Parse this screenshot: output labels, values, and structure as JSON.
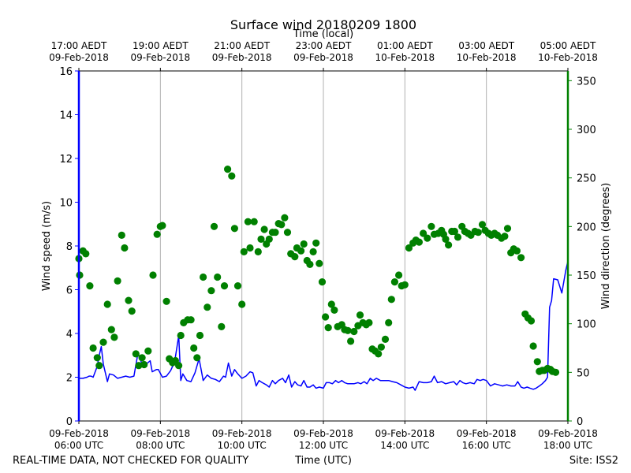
{
  "chart_data": {
    "type": "line+scatter",
    "title": "Surface wind 20180209 1800",
    "top_axis_label": "Time (local)",
    "xlabel": "Time (UTC)",
    "ylabel_left": "Wind speed (m/s)",
    "ylabel_right": "Wind direction (degrees)",
    "footer_left": "REAL-TIME DATA, NOT CHECKED FOR QUALITY",
    "footer_right": "Site: ISS2",
    "x_range_hours": [
      6,
      18
    ],
    "ylim_left": [
      0,
      16
    ],
    "ylim_right": [
      0,
      360
    ],
    "colors": {
      "speed": "#0000ff",
      "direction": "#008000",
      "grid": "#b0b0b0"
    },
    "bottom_ticks": [
      {
        "hour": 6,
        "line1": "09-Feb-2018",
        "line2": "06:00 UTC"
      },
      {
        "hour": 8,
        "line1": "09-Feb-2018",
        "line2": "08:00 UTC"
      },
      {
        "hour": 10,
        "line1": "09-Feb-2018",
        "line2": "10:00 UTC"
      },
      {
        "hour": 12,
        "line1": "09-Feb-2018",
        "line2": "12:00 UTC"
      },
      {
        "hour": 14,
        "line1": "09-Feb-2018",
        "line2": "14:00 UTC"
      },
      {
        "hour": 16,
        "line1": "09-Feb-2018",
        "line2": "16:00 UTC"
      },
      {
        "hour": 18,
        "line1": "09-Feb-2018",
        "line2": "18:00 UTC"
      }
    ],
    "top_ticks": [
      {
        "hour": 6,
        "line1": "17:00 AEDT",
        "line2": "09-Feb-2018"
      },
      {
        "hour": 8,
        "line1": "19:00 AEDT",
        "line2": "09-Feb-2018"
      },
      {
        "hour": 10,
        "line1": "21:00 AEDT",
        "line2": "09-Feb-2018"
      },
      {
        "hour": 12,
        "line1": "23:00 AEDT",
        "line2": "09-Feb-2018"
      },
      {
        "hour": 14,
        "line1": "01:00 AEDT",
        "line2": "10-Feb-2018"
      },
      {
        "hour": 16,
        "line1": "03:00 AEDT",
        "line2": "10-Feb-2018"
      },
      {
        "hour": 18,
        "line1": "05:00 AEDT",
        "line2": "10-Feb-2018"
      }
    ],
    "left_ticks": [
      "0",
      "2",
      "4",
      "6",
      "8",
      "10",
      "12",
      "14",
      "16"
    ],
    "right_ticks": [
      "0",
      "50",
      "100",
      "150",
      "200",
      "250",
      "300",
      "350"
    ],
    "series": [
      {
        "name": "Wind speed",
        "axis": "left",
        "style": "line",
        "points": [
          [
            6.0,
            1.95
          ],
          [
            6.1,
            1.95
          ],
          [
            6.2,
            2.0
          ],
          [
            6.25,
            2.05
          ],
          [
            6.3,
            2.05
          ],
          [
            6.35,
            2.0
          ],
          [
            6.45,
            2.5
          ],
          [
            6.5,
            3.0
          ],
          [
            6.55,
            3.4
          ],
          [
            6.6,
            2.6
          ],
          [
            6.7,
            1.8
          ],
          [
            6.75,
            2.15
          ],
          [
            6.85,
            2.1
          ],
          [
            6.95,
            1.95
          ],
          [
            7.05,
            2.0
          ],
          [
            7.15,
            2.05
          ],
          [
            7.25,
            2.0
          ],
          [
            7.35,
            2.05
          ],
          [
            7.45,
            3.1
          ],
          [
            7.55,
            2.6
          ],
          [
            7.65,
            2.6
          ],
          [
            7.75,
            2.75
          ],
          [
            7.8,
            2.25
          ],
          [
            7.9,
            2.35
          ],
          [
            7.95,
            2.35
          ],
          [
            8.05,
            2.0
          ],
          [
            8.15,
            2.05
          ],
          [
            8.25,
            2.3
          ],
          [
            8.35,
            2.7
          ],
          [
            8.45,
            3.9
          ],
          [
            8.5,
            1.85
          ],
          [
            8.55,
            2.15
          ],
          [
            8.65,
            1.85
          ],
          [
            8.75,
            1.8
          ],
          [
            8.85,
            2.2
          ],
          [
            8.95,
            2.85
          ],
          [
            9.05,
            1.85
          ],
          [
            9.15,
            2.1
          ],
          [
            9.25,
            1.95
          ],
          [
            9.35,
            1.9
          ],
          [
            9.45,
            1.8
          ],
          [
            9.55,
            2.05
          ],
          [
            9.6,
            2.0
          ],
          [
            9.67,
            2.65
          ],
          [
            9.75,
            2.05
          ],
          [
            9.82,
            2.35
          ],
          [
            9.9,
            2.15
          ],
          [
            10.0,
            1.95
          ],
          [
            10.1,
            2.05
          ],
          [
            10.2,
            2.25
          ],
          [
            10.27,
            2.2
          ],
          [
            10.35,
            1.6
          ],
          [
            10.42,
            1.85
          ],
          [
            10.5,
            1.75
          ],
          [
            10.6,
            1.65
          ],
          [
            10.67,
            1.55
          ],
          [
            10.75,
            1.85
          ],
          [
            10.82,
            1.7
          ],
          [
            10.9,
            1.85
          ],
          [
            11.0,
            1.95
          ],
          [
            11.07,
            1.75
          ],
          [
            11.15,
            2.1
          ],
          [
            11.22,
            1.55
          ],
          [
            11.3,
            1.8
          ],
          [
            11.37,
            1.65
          ],
          [
            11.45,
            1.6
          ],
          [
            11.52,
            1.85
          ],
          [
            11.6,
            1.55
          ],
          [
            11.67,
            1.55
          ],
          [
            11.75,
            1.65
          ],
          [
            11.82,
            1.5
          ],
          [
            11.9,
            1.55
          ],
          [
            12.0,
            1.5
          ],
          [
            12.07,
            1.75
          ],
          [
            12.15,
            1.75
          ],
          [
            12.22,
            1.7
          ],
          [
            12.3,
            1.85
          ],
          [
            12.37,
            1.75
          ],
          [
            12.45,
            1.85
          ],
          [
            12.52,
            1.75
          ],
          [
            12.6,
            1.7
          ],
          [
            12.75,
            1.7
          ],
          [
            12.85,
            1.75
          ],
          [
            12.92,
            1.7
          ],
          [
            13.0,
            1.8
          ],
          [
            13.07,
            1.7
          ],
          [
            13.15,
            1.95
          ],
          [
            13.22,
            1.85
          ],
          [
            13.3,
            1.95
          ],
          [
            13.4,
            1.85
          ],
          [
            13.5,
            1.85
          ],
          [
            13.6,
            1.85
          ],
          [
            13.7,
            1.8
          ],
          [
            13.8,
            1.75
          ],
          [
            13.9,
            1.65
          ],
          [
            14.0,
            1.55
          ],
          [
            14.1,
            1.5
          ],
          [
            14.2,
            1.55
          ],
          [
            14.25,
            1.4
          ],
          [
            14.35,
            1.8
          ],
          [
            14.45,
            1.75
          ],
          [
            14.55,
            1.75
          ],
          [
            14.65,
            1.8
          ],
          [
            14.72,
            2.05
          ],
          [
            14.8,
            1.75
          ],
          [
            14.9,
            1.8
          ],
          [
            15.0,
            1.7
          ],
          [
            15.1,
            1.75
          ],
          [
            15.2,
            1.8
          ],
          [
            15.27,
            1.65
          ],
          [
            15.35,
            1.85
          ],
          [
            15.42,
            1.75
          ],
          [
            15.5,
            1.7
          ],
          [
            15.6,
            1.75
          ],
          [
            15.7,
            1.7
          ],
          [
            15.77,
            1.9
          ],
          [
            15.85,
            1.85
          ],
          [
            15.92,
            1.9
          ],
          [
            16.0,
            1.85
          ],
          [
            16.1,
            1.6
          ],
          [
            16.2,
            1.7
          ],
          [
            16.3,
            1.65
          ],
          [
            16.4,
            1.6
          ],
          [
            16.5,
            1.65
          ],
          [
            16.6,
            1.6
          ],
          [
            16.7,
            1.6
          ],
          [
            16.77,
            1.8
          ],
          [
            16.85,
            1.55
          ],
          [
            16.92,
            1.5
          ],
          [
            17.0,
            1.55
          ],
          [
            17.07,
            1.5
          ],
          [
            17.15,
            1.45
          ],
          [
            17.22,
            1.5
          ],
          [
            17.3,
            1.6
          ],
          [
            17.37,
            1.7
          ],
          [
            17.45,
            1.85
          ],
          [
            17.5,
            2.0
          ],
          [
            17.55,
            5.2
          ],
          [
            17.6,
            5.5
          ],
          [
            17.65,
            6.5
          ],
          [
            17.75,
            6.45
          ],
          [
            17.85,
            5.85
          ],
          [
            17.95,
            6.9
          ],
          [
            18.0,
            7.3
          ]
        ]
      },
      {
        "name": "Wind direction",
        "axis": "right",
        "style": "markers",
        "points": [
          [
            6.0,
            167
          ],
          [
            6.02,
            150
          ],
          [
            6.1,
            175
          ],
          [
            6.17,
            172
          ],
          [
            6.27,
            139
          ],
          [
            6.35,
            75
          ],
          [
            6.45,
            65
          ],
          [
            6.5,
            57
          ],
          [
            6.6,
            81
          ],
          [
            6.7,
            120
          ],
          [
            6.8,
            94
          ],
          [
            6.87,
            86
          ],
          [
            6.95,
            144
          ],
          [
            7.05,
            191
          ],
          [
            7.12,
            178
          ],
          [
            7.22,
            124
          ],
          [
            7.3,
            113
          ],
          [
            7.4,
            69
          ],
          [
            7.47,
            57
          ],
          [
            7.55,
            65
          ],
          [
            7.6,
            58
          ],
          [
            7.7,
            72
          ],
          [
            7.82,
            150
          ],
          [
            7.92,
            192
          ],
          [
            8.0,
            200
          ],
          [
            8.05,
            201
          ],
          [
            8.15,
            123
          ],
          [
            8.22,
            64
          ],
          [
            8.3,
            60
          ],
          [
            8.37,
            62
          ],
          [
            8.45,
            57
          ],
          [
            8.5,
            88
          ],
          [
            8.57,
            101
          ],
          [
            8.67,
            104
          ],
          [
            8.75,
            104
          ],
          [
            8.82,
            75
          ],
          [
            8.9,
            65
          ],
          [
            8.97,
            88
          ],
          [
            9.05,
            148
          ],
          [
            9.15,
            117
          ],
          [
            9.25,
            134
          ],
          [
            9.32,
            200
          ],
          [
            9.4,
            148
          ],
          [
            9.5,
            97
          ],
          [
            9.57,
            139
          ],
          [
            9.65,
            259
          ],
          [
            9.75,
            252
          ],
          [
            9.82,
            198
          ],
          [
            9.9,
            139
          ],
          [
            10.0,
            120
          ],
          [
            10.05,
            174
          ],
          [
            10.15,
            205
          ],
          [
            10.2,
            178
          ],
          [
            10.3,
            205
          ],
          [
            10.4,
            174
          ],
          [
            10.47,
            187
          ],
          [
            10.55,
            197
          ],
          [
            10.6,
            182
          ],
          [
            10.67,
            187
          ],
          [
            10.75,
            194
          ],
          [
            10.82,
            194
          ],
          [
            10.9,
            203
          ],
          [
            10.97,
            202
          ],
          [
            11.05,
            209
          ],
          [
            11.12,
            194
          ],
          [
            11.2,
            172
          ],
          [
            11.3,
            169
          ],
          [
            11.35,
            178
          ],
          [
            11.45,
            175
          ],
          [
            11.52,
            182
          ],
          [
            11.6,
            165
          ],
          [
            11.67,
            161
          ],
          [
            11.75,
            174
          ],
          [
            11.82,
            183
          ],
          [
            11.9,
            162
          ],
          [
            11.97,
            143
          ],
          [
            12.05,
            107
          ],
          [
            12.12,
            96
          ],
          [
            12.2,
            120
          ],
          [
            12.27,
            114
          ],
          [
            12.35,
            97
          ],
          [
            12.45,
            99
          ],
          [
            12.52,
            94
          ],
          [
            12.6,
            93
          ],
          [
            12.67,
            82
          ],
          [
            12.75,
            92
          ],
          [
            12.85,
            98
          ],
          [
            12.9,
            109
          ],
          [
            12.97,
            101
          ],
          [
            13.05,
            99
          ],
          [
            13.12,
            101
          ],
          [
            13.2,
            74
          ],
          [
            13.27,
            72
          ],
          [
            13.35,
            69
          ],
          [
            13.42,
            76
          ],
          [
            13.52,
            84
          ],
          [
            13.6,
            101
          ],
          [
            13.67,
            125
          ],
          [
            13.75,
            143
          ],
          [
            13.85,
            150
          ],
          [
            13.92,
            139
          ],
          [
            14.0,
            140
          ],
          [
            14.1,
            178
          ],
          [
            14.2,
            183
          ],
          [
            14.27,
            186
          ],
          [
            14.35,
            184
          ],
          [
            14.45,
            193
          ],
          [
            14.55,
            188
          ],
          [
            14.65,
            200
          ],
          [
            14.72,
            192
          ],
          [
            14.82,
            193
          ],
          [
            14.9,
            196
          ],
          [
            14.95,
            192
          ],
          [
            15.0,
            187
          ],
          [
            15.07,
            181
          ],
          [
            15.15,
            195
          ],
          [
            15.22,
            195
          ],
          [
            15.3,
            189
          ],
          [
            15.4,
            200
          ],
          [
            15.47,
            195
          ],
          [
            15.55,
            193
          ],
          [
            15.62,
            191
          ],
          [
            15.72,
            195
          ],
          [
            15.8,
            194
          ],
          [
            15.9,
            202
          ],
          [
            15.97,
            196
          ],
          [
            16.05,
            193
          ],
          [
            16.12,
            191
          ],
          [
            16.2,
            193
          ],
          [
            16.27,
            191
          ],
          [
            16.37,
            188
          ],
          [
            16.45,
            190
          ],
          [
            16.52,
            198
          ],
          [
            16.6,
            173
          ],
          [
            16.67,
            177
          ],
          [
            16.75,
            175
          ],
          [
            16.85,
            168
          ],
          [
            16.95,
            110
          ],
          [
            17.02,
            106
          ],
          [
            17.1,
            103
          ],
          [
            17.15,
            77
          ],
          [
            17.25,
            61
          ],
          [
            17.3,
            51
          ],
          [
            17.37,
            52
          ],
          [
            17.42,
            52
          ],
          [
            17.5,
            54
          ],
          [
            17.57,
            53
          ],
          [
            17.62,
            51
          ],
          [
            17.7,
            50
          ]
        ]
      }
    ]
  }
}
